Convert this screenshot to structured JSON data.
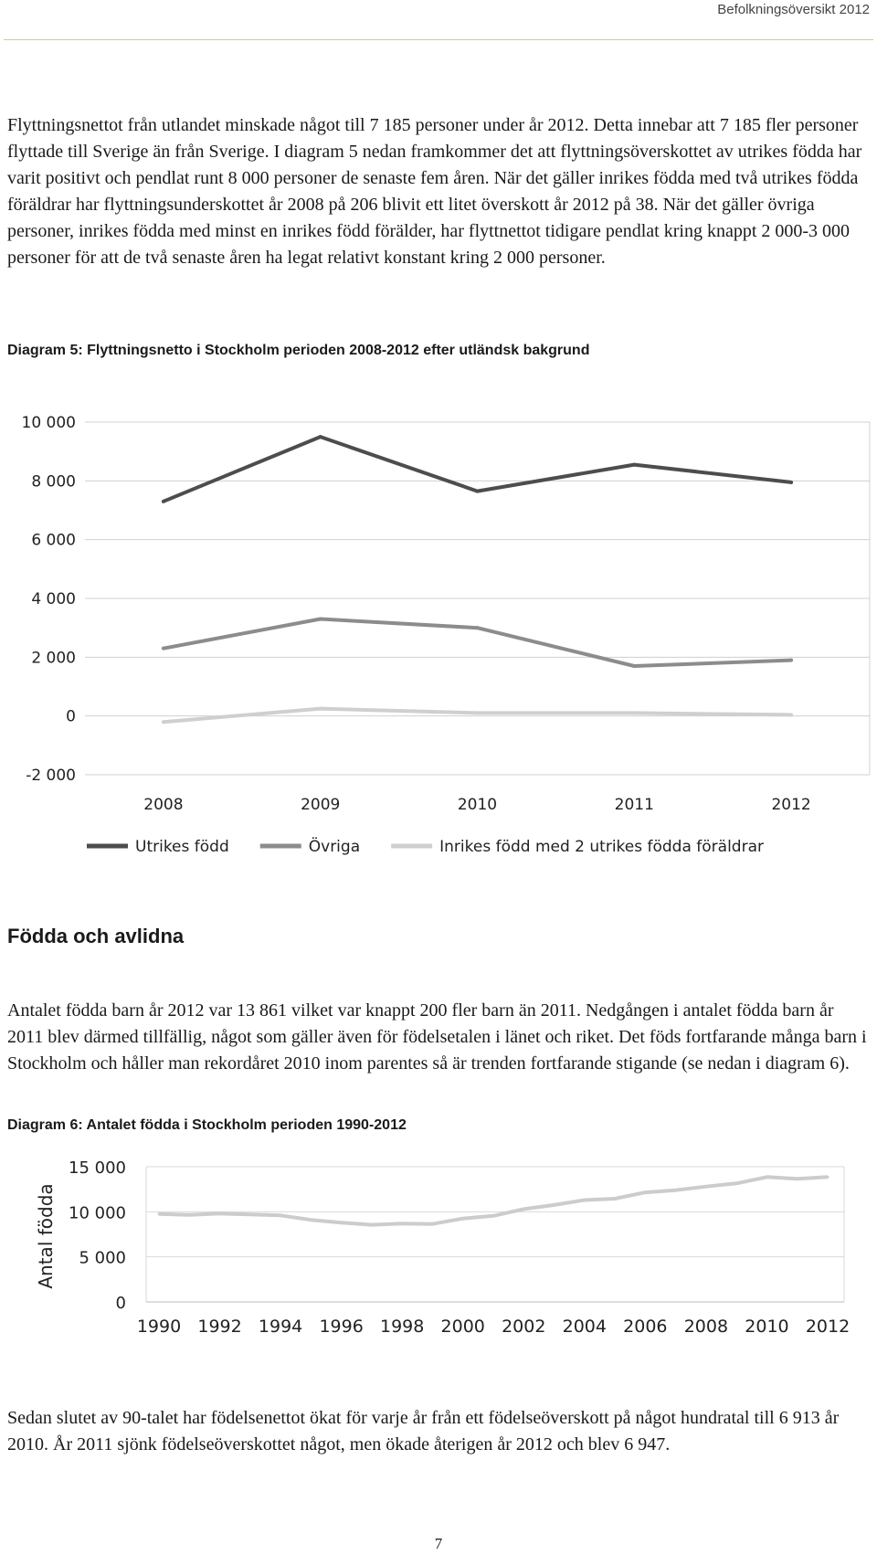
{
  "header": {
    "title": "Befolkningsöversikt 2012"
  },
  "paragraphs": {
    "p1": "Flyttningsnettot från utlandet minskade något till 7 185 personer under år 2012. Detta innebar att 7 185 fler personer flyttade till Sverige än från Sverige. I diagram 5 nedan framkommer det att flyttningsöverskottet av utrikes födda har varit positivt och pendlat runt 8 000 personer de senaste fem åren. När det gäller inrikes födda med två utrikes födda föräldrar har flyttningsunderskottet år 2008 på 206 blivit ett litet överskott år 2012 på 38. När det gäller övriga personer, inrikes födda med minst en inrikes född förälder, har flyttnettot tidigare pendlat kring knappt 2 000-3 000 personer för att de två senaste åren ha legat relativt konstant kring 2 000 personer.",
    "p2": "Antalet födda barn år 2012 var 13 861 vilket var knappt 200 fler barn än 2011. Nedgången i antalet födda barn år 2011 blev därmed tillfällig, något som gäller även för födelsetalen i länet och riket. Det föds fortfarande många barn i Stockholm och håller man rekordåret 2010 inom parentes så är trenden fortfarande stigande (se nedan i diagram 6).",
    "p3": "Sedan slutet av 90-talet har födelsenettot ökat för varje år från ett födelseöverskott på något hundratal till 6 913 år 2010. År 2011 sjönk födelseöverskottet något, men ökade återigen år 2012 och blev 6 947."
  },
  "captions": {
    "diagram5": "Diagram 5: Flyttningsnetto i Stockholm perioden 2008-2012 efter utländsk bakgrund",
    "diagram6": "Diagram 6: Antalet födda i Stockholm perioden 1990-2012"
  },
  "section_heading": "Födda och avlidna",
  "page_number": "7",
  "chart_data": [
    {
      "type": "line",
      "title": "Diagram 5: Flyttningsnetto i Stockholm perioden 2008-2012 efter utländsk bakgrund",
      "x": [
        "2008",
        "2009",
        "2010",
        "2011",
        "2012"
      ],
      "ylim": [
        -2000,
        10000
      ],
      "yticks": [
        -2000,
        0,
        2000,
        4000,
        6000,
        8000,
        10000
      ],
      "ytick_labels": [
        "-2 000",
        "0",
        "2 000",
        "4 000",
        "6 000",
        "8 000",
        "10 000"
      ],
      "grid": true,
      "legend": "bottom",
      "series": [
        {
          "name": "Utrikes född",
          "color": "#4d4d4d",
          "values": [
            7300,
            9500,
            7650,
            8550,
            7950
          ]
        },
        {
          "name": "Övriga",
          "color": "#8c8c8c",
          "values": [
            2300,
            3300,
            3000,
            1700,
            1900
          ]
        },
        {
          "name": "Inrikes född med 2 utrikes födda föräldrar",
          "color": "#cfcfcf",
          "values": [
            -206,
            250,
            100,
            100,
            38
          ]
        }
      ]
    },
    {
      "type": "line",
      "title": "Diagram 6: Antalet födda i Stockholm perioden 1990-2012",
      "ylabel": "Antal födda",
      "x": [
        1990,
        1991,
        1992,
        1993,
        1994,
        1995,
        1996,
        1997,
        1998,
        1999,
        2000,
        2001,
        2002,
        2003,
        2004,
        2005,
        2006,
        2007,
        2008,
        2009,
        2010,
        2011,
        2012
      ],
      "xtick_labels": [
        "1990",
        "1992",
        "1994",
        "1996",
        "1998",
        "2000",
        "2002",
        "2004",
        "2006",
        "2008",
        "2010",
        "2012"
      ],
      "ylim": [
        0,
        15000
      ],
      "yticks": [
        0,
        5000,
        10000,
        15000
      ],
      "ytick_labels": [
        "0",
        "5 000",
        "10 000",
        "15 000"
      ],
      "grid": true,
      "series": [
        {
          "color": "#cccccc",
          "values": [
            9750,
            9650,
            9800,
            9700,
            9600,
            9100,
            8800,
            8550,
            8700,
            8650,
            9250,
            9550,
            10300,
            10750,
            11300,
            11450,
            12150,
            12400,
            12800,
            13150,
            13850,
            13650,
            13861
          ]
        }
      ]
    }
  ]
}
